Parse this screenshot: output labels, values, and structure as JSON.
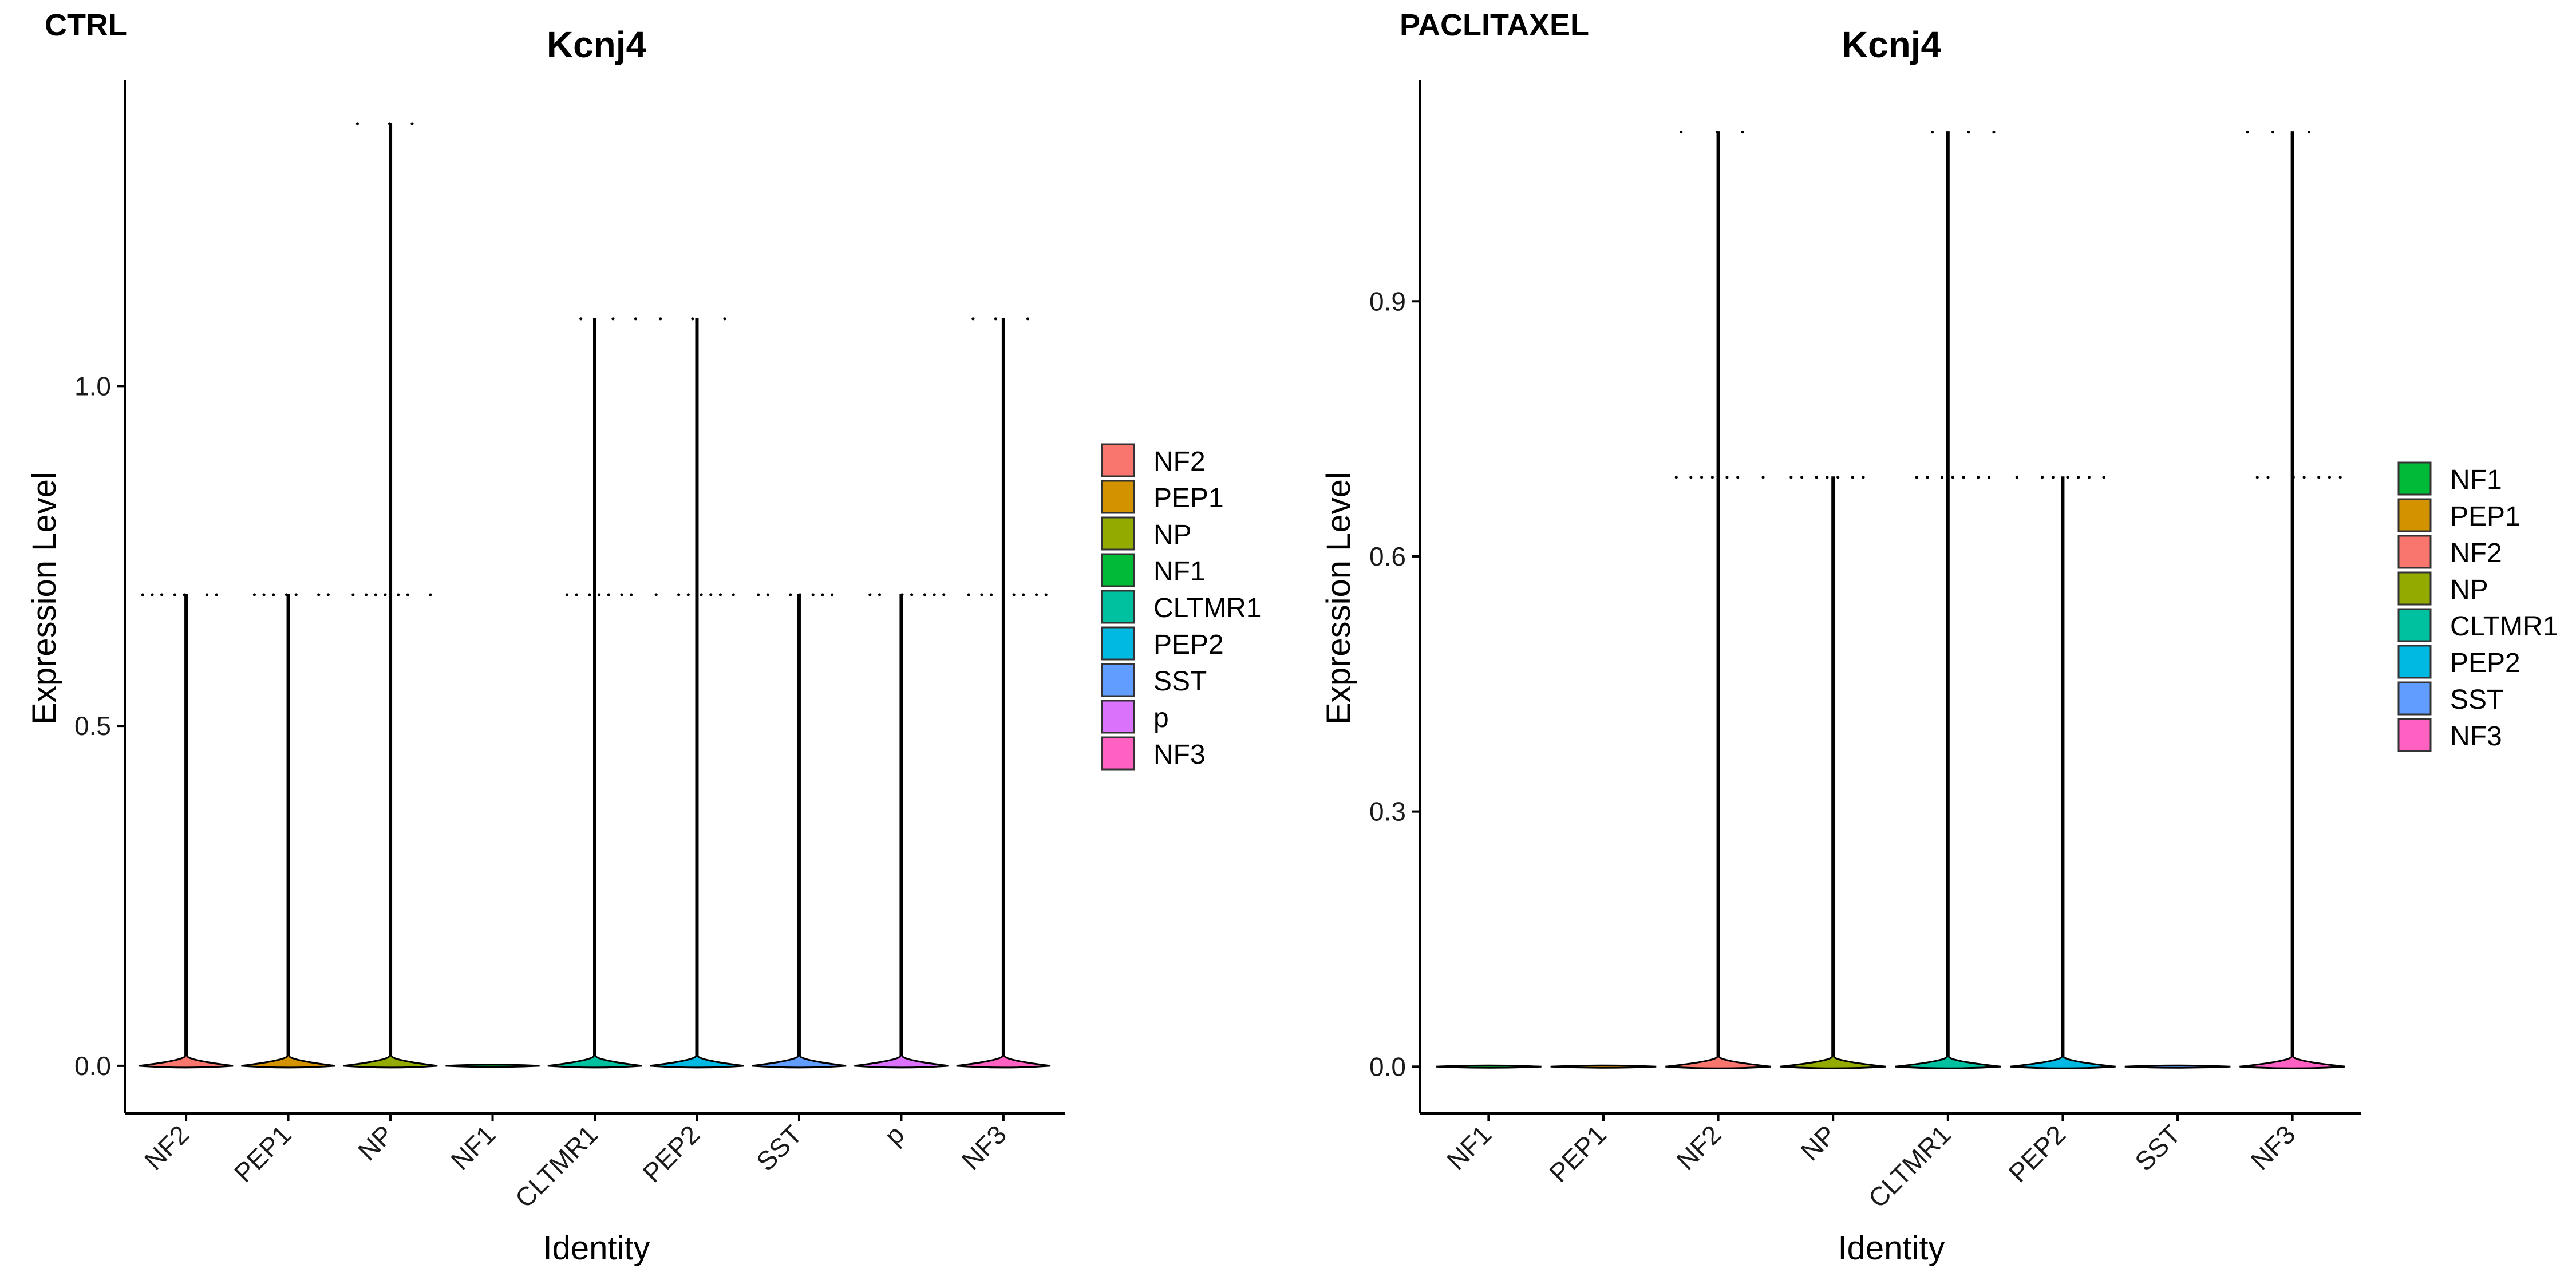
{
  "colors": {
    "NF2": "#F8766D",
    "PEP1": "#D39200",
    "NP": "#93AA00",
    "NF1": "#00BA38",
    "CLTMR1": "#00C19F",
    "PEP2": "#00B9E3",
    "SST": "#619CFF",
    "p": "#DB72FB",
    "NF3": "#FF61C3"
  },
  "chart_data": [
    {
      "type": "violin",
      "panel_label": "CTRL",
      "title": "Kcnj4",
      "xlabel": "Identity",
      "ylabel": "Expression Level",
      "ylim": [
        -0.07,
        1.45
      ],
      "yticks": [
        0.0,
        0.5,
        1.0
      ],
      "ytick_labels": [
        "0.0",
        "0.5",
        "1.0"
      ],
      "categories": [
        "NF2",
        "PEP1",
        "NP",
        "NF1",
        "CLTMR1",
        "PEP2",
        "SST",
        "p",
        "NF3"
      ],
      "max_values": [
        0.693,
        0.693,
        1.386,
        0.0,
        1.099,
        1.099,
        0.693,
        0.693,
        1.099
      ],
      "points": [
        {
          "category": "NF2",
          "levels": [
            0.693
          ]
        },
        {
          "category": "PEP1",
          "levels": [
            0.693
          ]
        },
        {
          "category": "NP",
          "levels": [
            0.693,
            1.386
          ]
        },
        {
          "category": "NF1",
          "levels": []
        },
        {
          "category": "CLTMR1",
          "levels": [
            0.693,
            1.099
          ]
        },
        {
          "category": "PEP2",
          "levels": [
            0.693,
            1.099
          ]
        },
        {
          "category": "SST",
          "levels": [
            0.693
          ]
        },
        {
          "category": "p",
          "levels": [
            0.693
          ]
        },
        {
          "category": "NF3",
          "levels": [
            0.693,
            1.099
          ]
        }
      ],
      "legend": [
        "NF2",
        "PEP1",
        "NP",
        "NF1",
        "CLTMR1",
        "PEP2",
        "SST",
        "p",
        "NF3"
      ],
      "legend_position": "right"
    },
    {
      "type": "violin",
      "panel_label": "PACLITAXEL",
      "title": "Kcnj4",
      "xlabel": "Identity",
      "ylabel": "Expression Level",
      "ylim": [
        -0.055,
        1.16
      ],
      "yticks": [
        0.0,
        0.3,
        0.6,
        0.9
      ],
      "ytick_labels": [
        "0.0",
        "0.3",
        "0.6",
        "0.9"
      ],
      "categories": [
        "NF1",
        "PEP1",
        "NF2",
        "NP",
        "CLTMR1",
        "PEP2",
        "SST",
        "NF3"
      ],
      "max_values": [
        0.0,
        0.0,
        1.099,
        0.693,
        1.099,
        0.693,
        0.0,
        1.099
      ],
      "points": [
        {
          "category": "NF1",
          "levels": []
        },
        {
          "category": "PEP1",
          "levels": []
        },
        {
          "category": "NF2",
          "levels": [
            0.693,
            1.099
          ]
        },
        {
          "category": "NP",
          "levels": [
            0.693
          ]
        },
        {
          "category": "CLTMR1",
          "levels": [
            0.693,
            1.099
          ]
        },
        {
          "category": "PEP2",
          "levels": [
            0.693
          ]
        },
        {
          "category": "SST",
          "levels": []
        },
        {
          "category": "NF3",
          "levels": [
            0.693,
            1.099
          ]
        }
      ],
      "legend": [
        "NF1",
        "PEP1",
        "NF2",
        "NP",
        "CLTMR1",
        "PEP2",
        "SST",
        "NF3"
      ],
      "legend_position": "right"
    }
  ]
}
